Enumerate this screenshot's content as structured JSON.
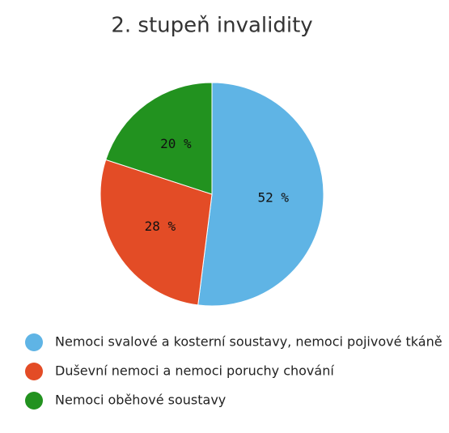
{
  "chart_data": {
    "type": "pie",
    "title": "2. stupeň invalidity",
    "categories": [
      "Nemoci svalové a kosterní soustavy, nemoci pojivové tkáně",
      "Duševní nemoci a nemoci poruchy chování",
      "Nemoci oběhové soustavy"
    ],
    "values": [
      52,
      28,
      20
    ],
    "value_labels": [
      "52 %",
      "28 %",
      "20 %"
    ],
    "colors": [
      "#5fb4e5",
      "#e34c26",
      "#22921f"
    ]
  }
}
